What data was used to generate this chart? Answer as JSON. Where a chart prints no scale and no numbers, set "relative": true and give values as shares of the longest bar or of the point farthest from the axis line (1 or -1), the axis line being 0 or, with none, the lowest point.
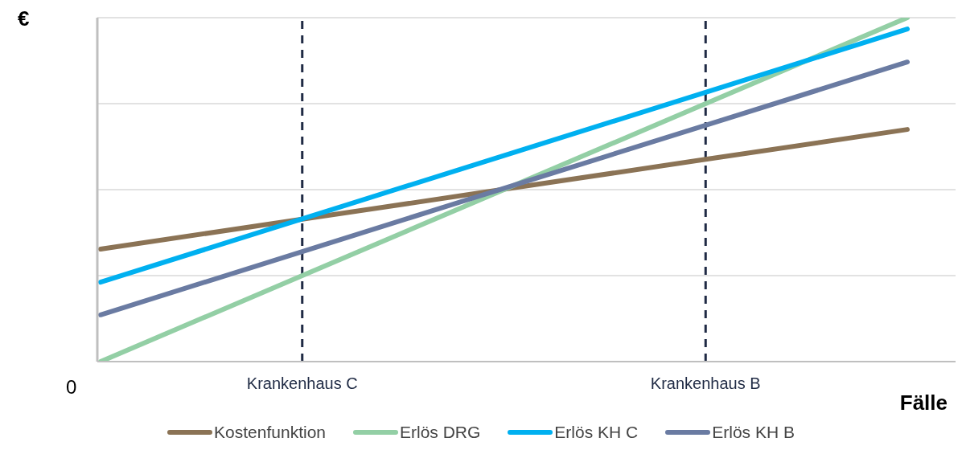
{
  "chart_data": {
    "type": "line",
    "relative": true,
    "ylabel": "€",
    "xlabel": "Fälle",
    "annotations": [
      "0"
    ],
    "categories": [
      null,
      "Krankenhaus C",
      null,
      "Krankenhaus B",
      null
    ],
    "series": [
      {
        "name": "Kostenfunktion",
        "color": "#8b7355",
        "values": [
          0.327,
          0.414,
          0.501,
          0.588,
          0.675
        ]
      },
      {
        "name": "Erlös DRG",
        "color": "#93cfa5",
        "values": [
          0,
          0.25,
          0.5,
          0.75,
          1
        ]
      },
      {
        "name": "Erlös KH C",
        "color": "#00b0f0",
        "values": [
          0.231,
          0.415,
          0.599,
          0.783,
          0.967
        ]
      },
      {
        "name": "Erlös KH B",
        "color": "#6a7ba2",
        "values": [
          0.136,
          0.32,
          0.504,
          0.687,
          0.871
        ]
      }
    ],
    "ref_lines": [
      {
        "axis": "x",
        "value": "Krankenhaus C",
        "color": "#1f2a44",
        "line_style": "dashed"
      },
      {
        "axis": "x",
        "value": "Krankenhaus B",
        "color": "#1f2a44",
        "line_style": "dashed"
      }
    ],
    "grid": "y",
    "legend": "bottom",
    "marker": "none",
    "line_style": "solid"
  }
}
